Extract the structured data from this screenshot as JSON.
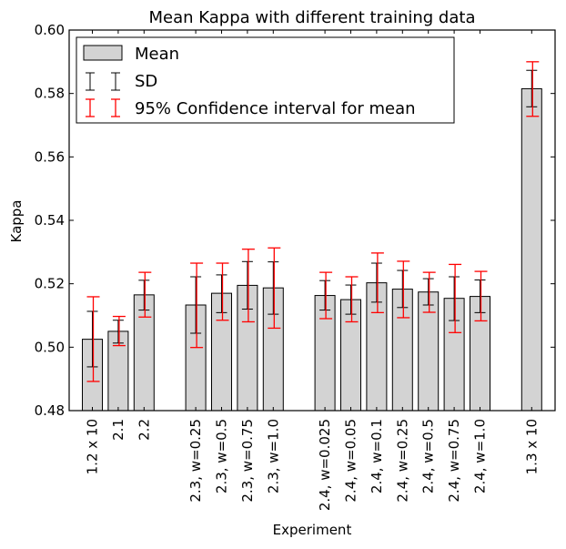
{
  "chart_data": {
    "type": "bar",
    "title": "Mean Kappa with different training data",
    "xlabel": "Experiment",
    "ylabel": "Kappa",
    "ylim": [
      0.48,
      0.6
    ],
    "yticks": [
      "0.48",
      "0.50",
      "0.52",
      "0.54",
      "0.56",
      "0.58",
      "0.60"
    ],
    "grid": false,
    "legend_position": "top-left",
    "legend": {
      "mean": "Mean",
      "sd": "SD",
      "ci": "95% Confidence interval for mean"
    },
    "colors": {
      "bar": "#d3d3d3",
      "sd": "#000000",
      "ci": "#ff0000"
    },
    "groups": [
      {
        "bars": [
          {
            "label": "1.2 x 10",
            "mean": 0.5025,
            "sd": [
              0.4938,
              0.5113
            ],
            "ci": [
              0.4892,
              0.5159
            ]
          },
          {
            "label": "2.1",
            "mean": 0.505,
            "sd": [
              0.5013,
              0.5085
            ],
            "ci": [
              0.5005,
              0.5097
            ]
          },
          {
            "label": "2.2",
            "mean": 0.5165,
            "sd": [
              0.5117,
              0.5211
            ],
            "ci": [
              0.5095,
              0.5236
            ]
          }
        ]
      },
      {
        "bars": [
          {
            "label": "2.3, w=0.25",
            "mean": 0.5133,
            "sd": [
              0.5044,
              0.5222
            ],
            "ci": [
              0.4999,
              0.5265
            ]
          },
          {
            "label": "2.3, w=0.5",
            "mean": 0.517,
            "sd": [
              0.5109,
              0.5228
            ],
            "ci": [
              0.5085,
              0.5265
            ]
          },
          {
            "label": "2.3, w=0.75",
            "mean": 0.5195,
            "sd": [
              0.512,
              0.527
            ],
            "ci": [
              0.508,
              0.5309
            ]
          },
          {
            "label": "2.3, w=1.0",
            "mean": 0.5187,
            "sd": [
              0.5104,
              0.5269
            ],
            "ci": [
              0.506,
              0.5313
            ]
          }
        ]
      },
      {
        "bars": [
          {
            "label": "2.4, w=0.025",
            "mean": 0.5163,
            "sd": [
              0.5117,
              0.521
            ],
            "ci": [
              0.509,
              0.5236
            ]
          },
          {
            "label": "2.4, w=0.05",
            "mean": 0.515,
            "sd": [
              0.5104,
              0.5196
            ],
            "ci": [
              0.508,
              0.5222
            ]
          },
          {
            "label": "2.4, w=0.1",
            "mean": 0.5203,
            "sd": [
              0.5142,
              0.5265
            ],
            "ci": [
              0.5109,
              0.5297
            ]
          },
          {
            "label": "2.4, w=0.25",
            "mean": 0.5183,
            "sd": [
              0.5125,
              0.5242
            ],
            "ci": [
              0.5093,
              0.5271
            ]
          },
          {
            "label": "2.4, w=0.5",
            "mean": 0.5174,
            "sd": [
              0.5133,
              0.5216
            ],
            "ci": [
              0.511,
              0.5236
            ]
          },
          {
            "label": "2.4, w=0.75",
            "mean": 0.5154,
            "sd": [
              0.5084,
              0.5222
            ],
            "ci": [
              0.5046,
              0.5261
            ]
          },
          {
            "label": "2.4, w=1.0",
            "mean": 0.516,
            "sd": [
              0.5109,
              0.5212
            ],
            "ci": [
              0.5083,
              0.5239
            ]
          }
        ]
      },
      {
        "bars": [
          {
            "label": "1.3 x 10",
            "mean": 0.5815,
            "sd": [
              0.5758,
              0.5873
            ],
            "ci": [
              0.5728,
              0.59
            ]
          }
        ]
      }
    ]
  }
}
